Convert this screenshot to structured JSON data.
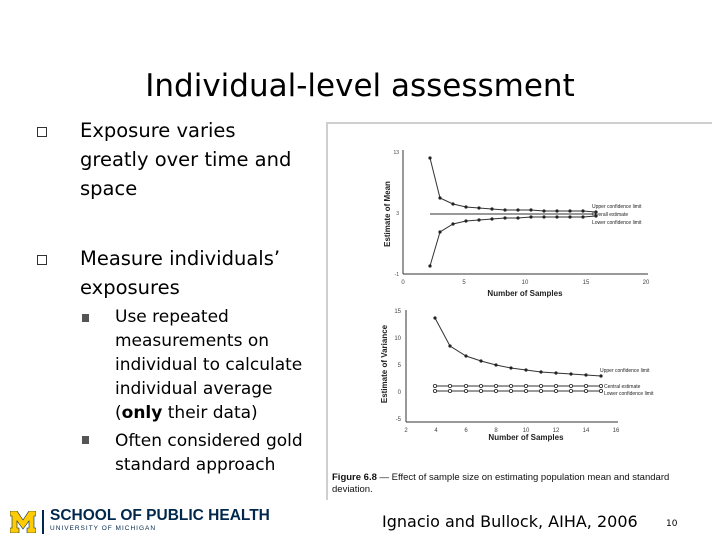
{
  "slide": {
    "title": "Individual-level assessment",
    "bullets": [
      {
        "lines": [
          "Exposure varies",
          "greatly over time and",
          "space"
        ]
      },
      {
        "lines": [
          "Measure individuals’",
          "exposures"
        ]
      }
    ],
    "sub_bullets": [
      {
        "lines": [
          "Use repeated",
          "measurements on",
          "individual to calculate",
          "individual average"
        ],
        "last_pre": "(",
        "last_bold": "only",
        "last_post": " their data)"
      },
      {
        "lines": [
          "Often considered gold",
          "standard approach"
        ]
      }
    ],
    "figure": {
      "top_plot": {
        "y_label": "Estimate of Mean",
        "x_label": "Number of Samples",
        "y_ticks": [
          "13",
          "3",
          "-1"
        ],
        "x_ticks": [
          "0",
          "5",
          "10",
          "15",
          "20"
        ],
        "legend": [
          "Upper confidence limit",
          "Overall estimate",
          "Lower confidence limit"
        ]
      },
      "bottom_plot": {
        "y_label": "Estimate of Variance",
        "x_label": "Number of Samples",
        "y_ticks": [
          "15",
          "10",
          "5",
          "0",
          "-5"
        ],
        "x_ticks": [
          "2",
          "4",
          "6",
          "8",
          "10",
          "12",
          "14",
          "16"
        ],
        "legend": [
          "Upper confidence limit",
          "Central estimate",
          "Lower confidence limit"
        ]
      },
      "caption_label": "Figure 6.8",
      "caption_text": " — Effect of sample size on estimating population mean and standard deviation."
    },
    "footer": {
      "logo_line1": "SCHOOL OF PUBLIC HEALTH",
      "logo_line2": "UNIVERSITY OF MICHIGAN",
      "citation": "Ignacio and Bullock, AIHA, 2006",
      "page_number": "10"
    },
    "colors": {
      "brand_navy": "#00274c",
      "brand_maize": "#ffcb05"
    }
  }
}
